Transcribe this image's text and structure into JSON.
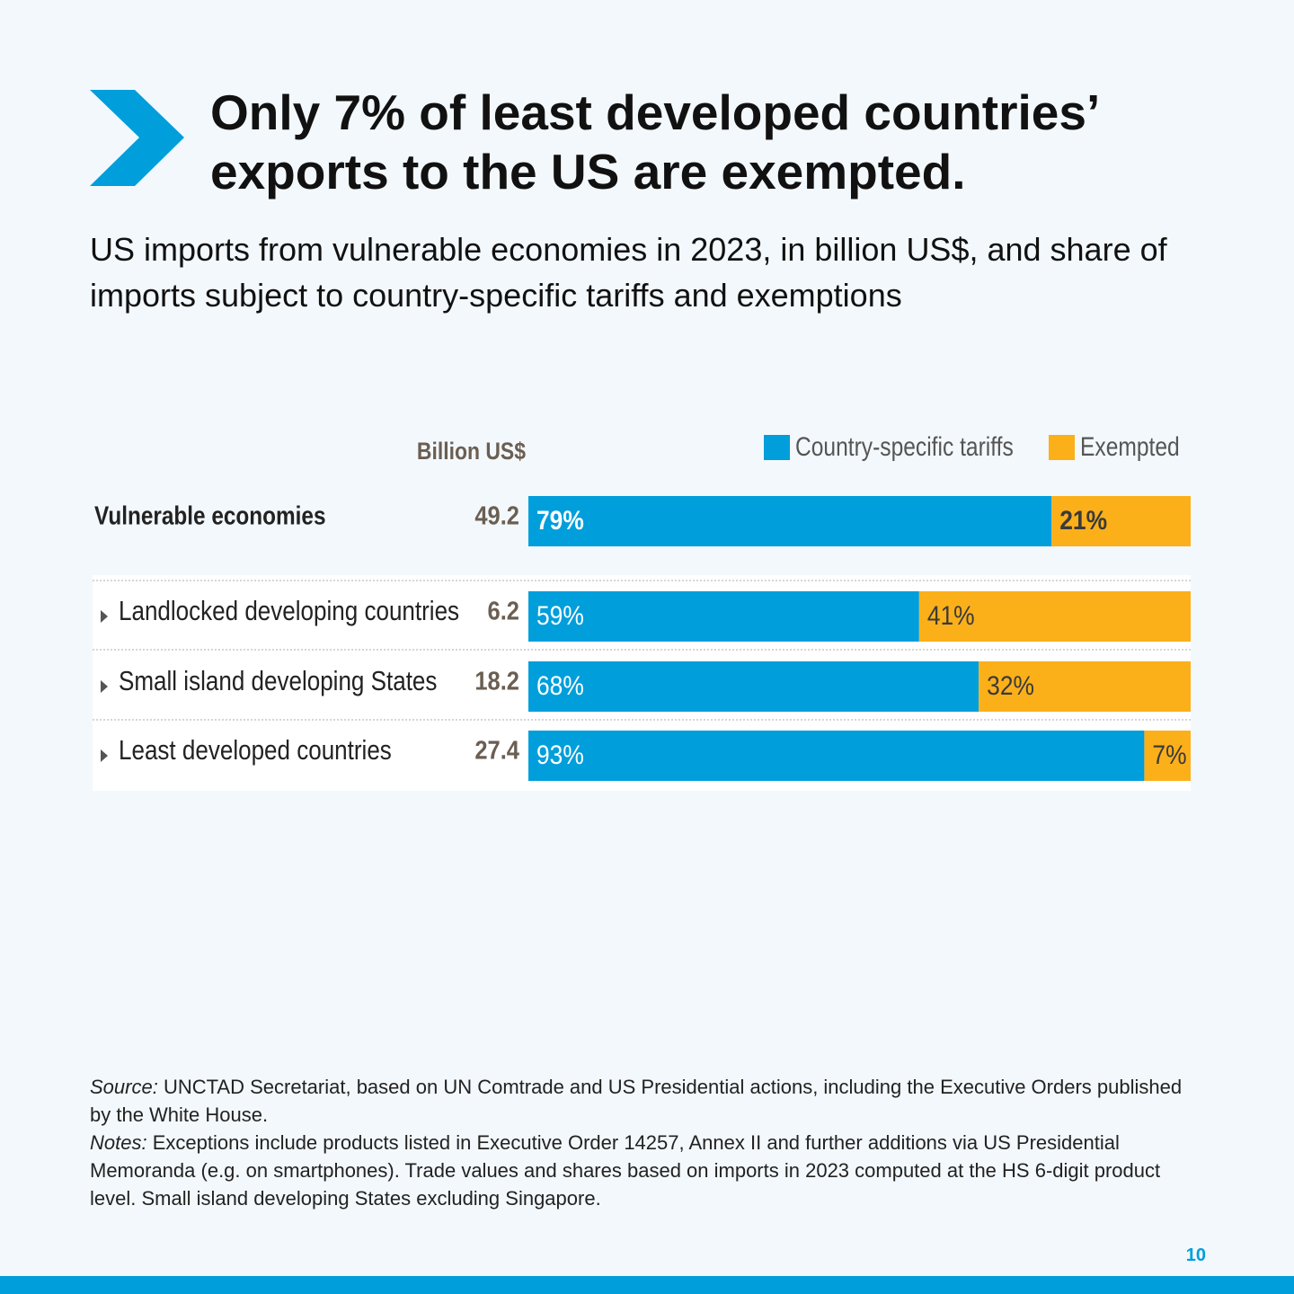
{
  "chart_data": {
    "type": "bar",
    "title": "Only 7% of least developed countries’ exports to the US are exempted.",
    "subtitle": "US imports from vulnerable economies in 2023, in billion US$, and share of imports subject to country-specific tariffs and exemptions",
    "totals_label": "Billion US$",
    "categories": [
      "Vulnerable economies",
      "Landlocked developing countries",
      "Small island developing States",
      "Least developed countries"
    ],
    "totals": [
      49.2,
      6.2,
      18.2,
      27.4
    ],
    "xlim": [
      0,
      100
    ],
    "series": [
      {
        "name": "Country-specific tariffs",
        "color": "#009edb",
        "values": [
          79,
          59,
          68,
          93
        ],
        "value_labels": [
          "79%",
          "59%",
          "68%",
          "93%"
        ]
      },
      {
        "name": "Exempted",
        "color": "#fbb01a",
        "values": [
          21,
          41,
          32,
          7
        ],
        "value_labels": [
          "21%",
          "41%",
          "32%",
          "7%"
        ]
      }
    ]
  },
  "footer": {
    "source_label": "Source:",
    "source": "UNCTAD Secretariat, based on UN Comtrade and US Presidential actions, including the Executive Orders published by the White House.",
    "notes_label": "Notes:",
    "notes": "Exceptions include products listed in Executive Order 14257, Annex II and further additions via US Presidential Memoranda (e.g. on smartphones). Trade values and shares based on imports in 2023 computed at the HS 6-digit product level. Small island developing States excluding Singapore.",
    "page_number": "10"
  }
}
